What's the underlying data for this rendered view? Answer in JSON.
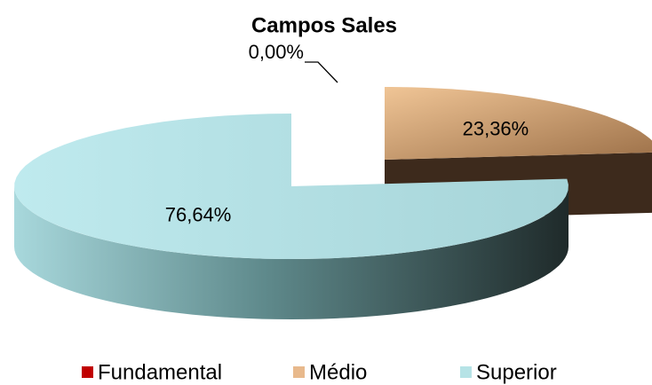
{
  "chart_data": {
    "type": "pie",
    "title": "Campos Sales",
    "categories": [
      "Fundamental",
      "Médio",
      "Superior"
    ],
    "values": [
      0,
      23.36,
      76.64
    ],
    "value_labels": [
      "0,00%",
      "23,36%",
      "76,64%"
    ],
    "colors": [
      "#c00000",
      "#e8b98c",
      "#b6e3e6"
    ],
    "legend": "bottom"
  }
}
